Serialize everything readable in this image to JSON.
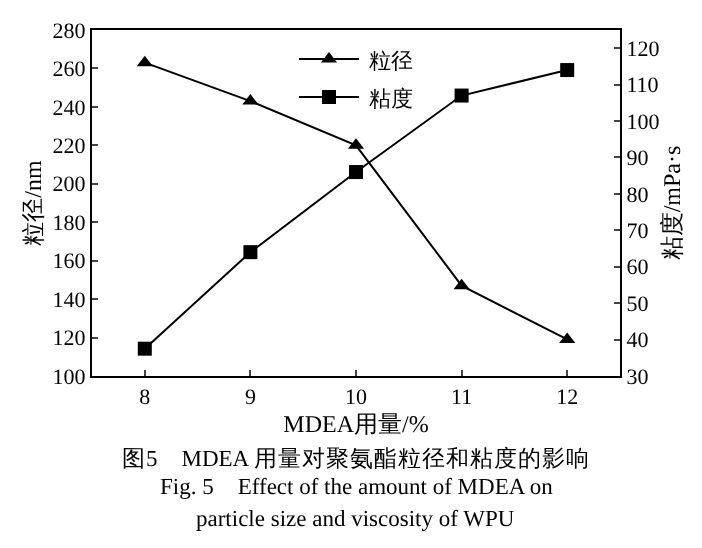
{
  "chart_data": {
    "type": "line",
    "title": "图5　MDEA 用量对聚氨酯粒径和粘度的影响",
    "annotations": [
      "Fig. 5　Effect of the amount of MDEA on",
      "particle size and viscosity of WPU"
    ],
    "xlabel": "MDEA用量/%",
    "ylabel": "粒径/nm",
    "y2label": "粘度/mPa·s",
    "x": [
      8,
      9,
      10,
      11,
      12
    ],
    "series": [
      {
        "name": "粒径",
        "color": "#000000",
        "marker": "triangle",
        "values": [
          263,
          243,
          220,
          147,
          119
        ]
      },
      {
        "name": "粘度",
        "color": "#000000",
        "marker": "square",
        "axis": "y2",
        "values": [
          37.5,
          64,
          86,
          107,
          114
        ]
      }
    ],
    "xlim": [
      7.5,
      12.5
    ],
    "xticks": [
      8,
      9,
      10,
      11,
      12
    ],
    "ylim": [
      100,
      280
    ],
    "yticks": [
      100,
      120,
      140,
      160,
      180,
      200,
      220,
      240,
      260,
      280
    ],
    "y2lim": [
      30,
      125
    ],
    "y2ticks": [
      30,
      40,
      50,
      60,
      70,
      80,
      90,
      100,
      110,
      120
    ],
    "legend": "top",
    "line_style": "solid"
  }
}
